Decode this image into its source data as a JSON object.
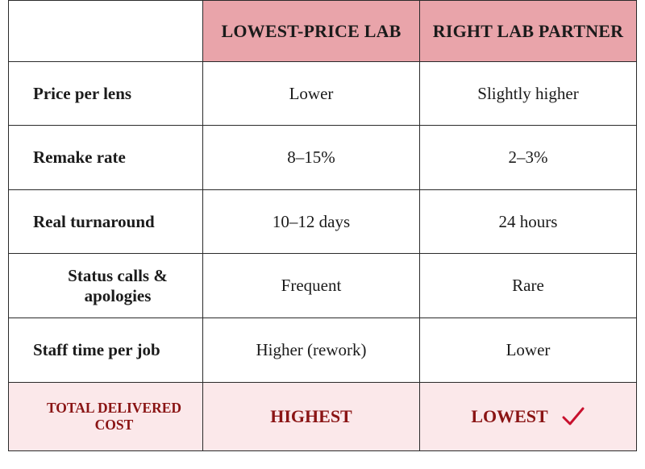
{
  "columns": [
    "",
    "LOWEST-PRICE LAB",
    "RIGHT LAB PARTNER"
  ],
  "rows": [
    {
      "label": "Price per lens",
      "lowest": "Lower",
      "right": "Slightly higher"
    },
    {
      "label": "Remake rate",
      "lowest": "8–15%",
      "right": "2–3%"
    },
    {
      "label": "Real turnaround",
      "lowest": "10–12 days",
      "right": "24 hours"
    },
    {
      "label": "Status calls & apologies",
      "lowest": "Frequent",
      "right": "Rare"
    },
    {
      "label": "Staff time per job",
      "lowest": "Higher (rework)",
      "right": "Lower"
    }
  ],
  "total": {
    "label": "TOTAL DELIVERED COST",
    "lowest": "HIGHEST",
    "right": "LOWEST",
    "right_icon": "checkmark-icon"
  },
  "colors": {
    "header_bg": "#e9a4aa",
    "total_bg": "#fbe8ea",
    "accent": "#8a1414",
    "check": "#c8102e"
  }
}
